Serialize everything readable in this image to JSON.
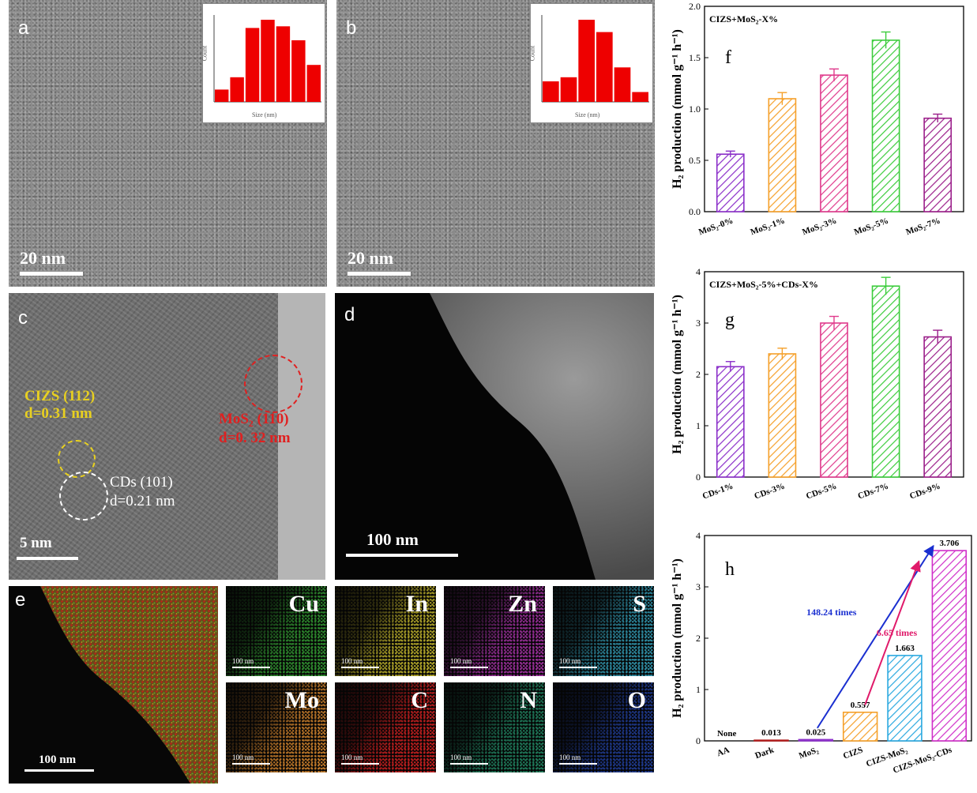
{
  "panels": {
    "a": {
      "label": "a",
      "scale": "20 nm",
      "inset_ylabel": "Count",
      "inset_xlabel": "Size (nm)",
      "inset_values": [
        0.15,
        0.3,
        0.9,
        1.0,
        0.92,
        0.75,
        0.45
      ]
    },
    "b": {
      "label": "b",
      "scale": "20 nm",
      "inset_ylabel": "Count",
      "inset_xlabel": "Size (nm)",
      "inset_values": [
        0.25,
        0.3,
        1.0,
        0.85,
        0.42,
        0.12
      ]
    },
    "c": {
      "label": "c",
      "scale": "5 nm",
      "cizs_line1": "CIZS (112)",
      "cizs_line2": "d=0.31 nm",
      "mos2_line1": "MoS₂ (110)",
      "mos2_line2": "d=0. 32 nm",
      "cds_line1": "CDs (101)",
      "cds_line2": "d=0.21 nm"
    },
    "d": {
      "label": "d",
      "scale": "100 nm"
    },
    "e": {
      "label": "e",
      "scale": "100 nm",
      "maps": [
        {
          "element": "Cu",
          "scale": "100 nm",
          "color": "#2f8f2f"
        },
        {
          "element": "In",
          "scale": "100 nm",
          "color": "#b5a92a"
        },
        {
          "element": "Zn",
          "scale": "100 nm",
          "color": "#9a2f9a"
        },
        {
          "element": "S",
          "scale": "100 nm",
          "color": "#2f8fa6"
        },
        {
          "element": "Mo",
          "scale": "100 nm",
          "color": "#c27a2a"
        },
        {
          "element": "C",
          "scale": "100 nm",
          "color": "#c21f1f"
        },
        {
          "element": "N",
          "scale": "100 nm",
          "color": "#1f7a5a"
        },
        {
          "element": "O",
          "scale": "100 nm",
          "color": "#1f3a8f"
        }
      ]
    }
  },
  "chart_data": [
    {
      "type": "bar",
      "panel_label": "f",
      "title": "CIZS+MoS₂-X%",
      "ylabel": "H₂ production (mmol g⁻¹ h⁻¹)",
      "categories": [
        "MoS₂-0%",
        "MoS₂-1%",
        "MoS₂-3%",
        "MoS₂-5%",
        "MoS₂-7%"
      ],
      "values": [
        0.56,
        1.1,
        1.33,
        1.67,
        0.91
      ],
      "errors": [
        0.03,
        0.06,
        0.06,
        0.08,
        0.04
      ],
      "ylim": [
        0,
        2.0
      ],
      "yticks": [
        "0.0",
        "0.5",
        "1.0",
        "1.5",
        "2.0"
      ],
      "colors": [
        "#8b2fc9",
        "#f5a02a",
        "#e03a8c",
        "#3ccc3c",
        "#9b1f8a"
      ]
    },
    {
      "type": "bar",
      "panel_label": "g",
      "title": "CIZS+MoS₂-5%+CDs-X%",
      "ylabel": "H₂ production (mmol g⁻¹ h⁻¹)",
      "categories": [
        "CDs-1%",
        "CDs-3%",
        "CDs-5%",
        "CDs-7%",
        "CDs-9%"
      ],
      "values": [
        2.15,
        2.4,
        3.0,
        3.72,
        2.73
      ],
      "errors": [
        0.1,
        0.11,
        0.13,
        0.17,
        0.13
      ],
      "ylim": [
        0,
        4
      ],
      "yticks": [
        "0",
        "1",
        "2",
        "3",
        "4"
      ],
      "colors": [
        "#8b2fc9",
        "#f5a02a",
        "#e03a8c",
        "#3ccc3c",
        "#9b1f8a"
      ]
    },
    {
      "type": "bar",
      "panel_label": "h",
      "ylabel": "H₂ production (mmol g⁻¹ h⁻¹)",
      "categories": [
        "AA",
        "Dark",
        "MoS₂",
        "CIZS",
        "CIZS-MoS₂",
        "CIZS-MoS₂-CDs"
      ],
      "values": [
        0,
        0.013,
        0.025,
        0.557,
        1.663,
        3.706
      ],
      "value_labels": [
        "None",
        "0.013",
        "0.025",
        "0.557",
        "1.663",
        "3.706"
      ],
      "ylim": [
        0,
        4
      ],
      "yticks": [
        "0",
        "1",
        "2",
        "3",
        "4"
      ],
      "colors": [
        "#333333",
        "#b01a1a",
        "#8b2fc9",
        "#f5a02a",
        "#2aa9e0",
        "#d02fc9"
      ],
      "annotations": [
        {
          "text": "148.24 times",
          "color": "#1a2fd0"
        },
        {
          "text": "6.65 times",
          "color": "#e01a6a"
        }
      ]
    }
  ]
}
